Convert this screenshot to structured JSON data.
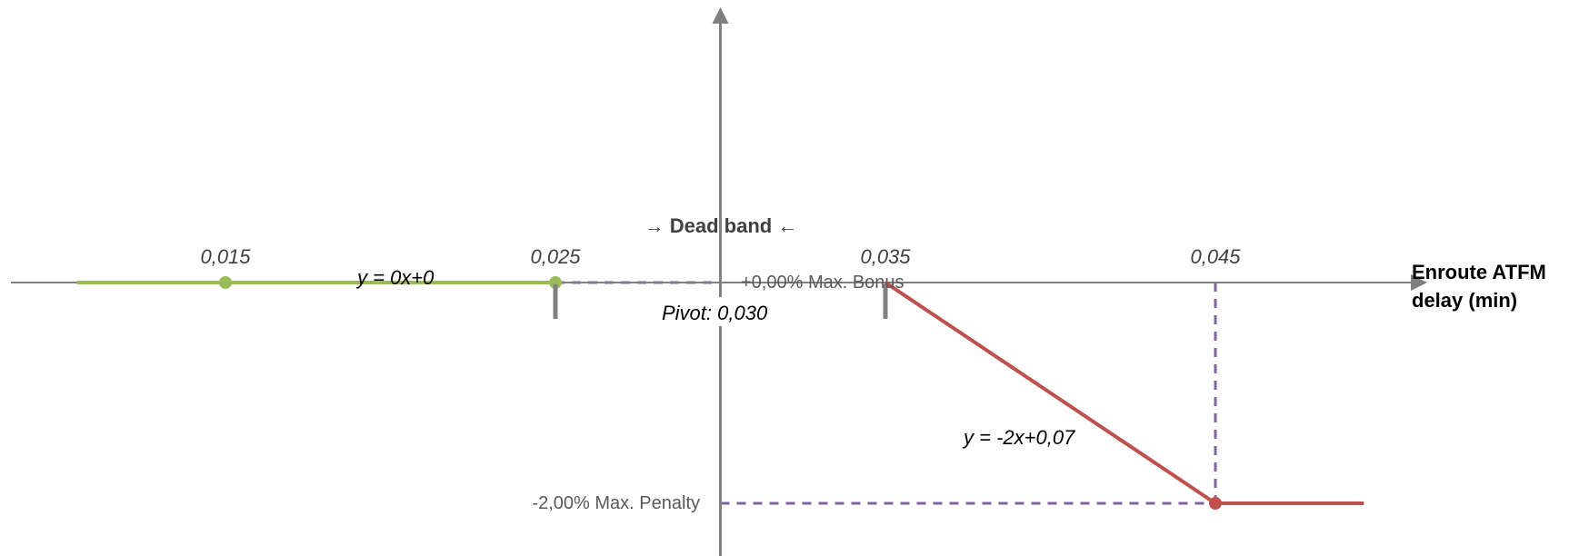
{
  "chart_data": {
    "type": "line",
    "x_axis_title": [
      "Enroute ATFM",
      "delay (min)"
    ],
    "x_ticks": [
      {
        "value": 0.015,
        "label": "0,015"
      },
      {
        "value": 0.025,
        "label": "0,025"
      },
      {
        "value": 0.035,
        "label": "0,035"
      },
      {
        "value": 0.045,
        "label": "0,045"
      }
    ],
    "series": [
      {
        "color": "#9bbb59",
        "x": [
          0.0105,
          0.025
        ],
        "y": [
          0,
          0
        ],
        "markers": [
          {
            "x": 0.015,
            "y": 0
          },
          {
            "x": 0.025,
            "y": 0
          }
        ],
        "equation": "y = 0x+0"
      },
      {
        "color": "#c0504d",
        "x": [
          0.035,
          0.045,
          0.0495
        ],
        "y": [
          0,
          -0.02,
          -0.02
        ],
        "markers": [
          {
            "x": 0.045,
            "y": -0.02
          }
        ],
        "equation": "y = -2x+0,07"
      }
    ],
    "pivot": {
      "x": 0.03,
      "label": "Pivot: 0,030"
    },
    "dead_band": {
      "x_range": [
        0.025,
        0.035
      ],
      "label": "→ Dead band ←",
      "color": "#1f4e79"
    },
    "max_bonus": {
      "y": 0,
      "label": "+0,00% Max. Bonus"
    },
    "max_penalty": {
      "y": -0.02,
      "label": "-2,00% Max. Penalty"
    },
    "reference_line_color": "#8064a2",
    "axis_color": "#808080",
    "grid": false
  }
}
